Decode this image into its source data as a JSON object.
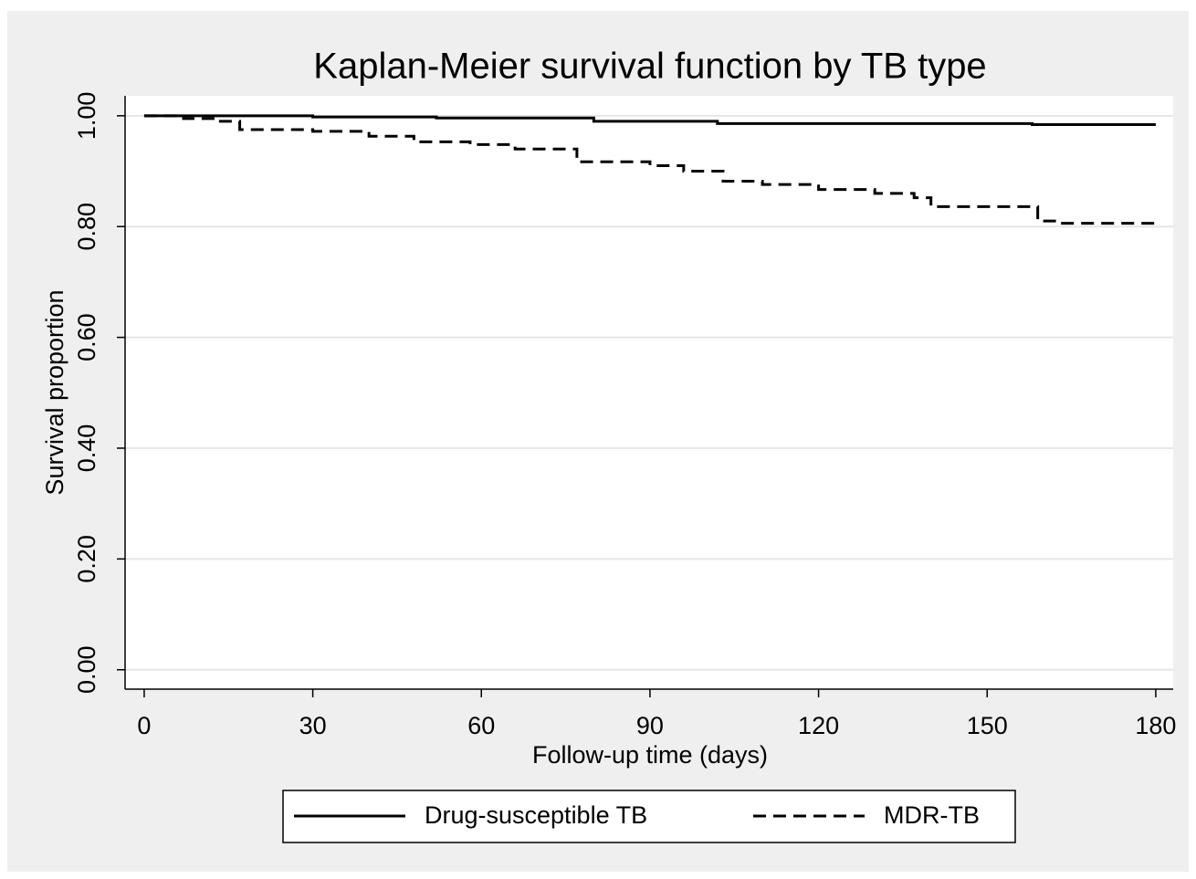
{
  "chart_data": {
    "type": "step",
    "title": "Kaplan-Meier survival function by TB type",
    "x_label": "Follow-up time (days)",
    "y_label": "Survival proportion",
    "xlim": [
      -3.4,
      183.1
    ],
    "ylim": [
      -0.035,
      1.036
    ],
    "xticks": [
      0,
      30,
      60,
      90,
      120,
      150,
      180
    ],
    "yticks": [
      {
        "value": 0,
        "label": "0.00"
      },
      {
        "value": 0.2,
        "label": "0.20"
      },
      {
        "value": 0.4,
        "label": "0.40"
      },
      {
        "value": 0.6,
        "label": "0.60"
      },
      {
        "value": 0.8,
        "label": "0.80"
      },
      {
        "value": 1,
        "label": "1.00"
      }
    ],
    "grid": true,
    "legend": "bottom",
    "series": [
      {
        "name": "Drug-susceptible TB",
        "color": "#000000",
        "dash": "solid",
        "x": [
          0,
          30,
          52,
          80,
          102,
          158,
          180
        ],
        "values": [
          1,
          0.998,
          0.996,
          0.99,
          0.986,
          0.984,
          0.984
        ]
      },
      {
        "name": "MDR-TB",
        "color": "#000000",
        "dash": "dashed",
        "x": [
          0,
          7,
          13,
          17,
          30,
          40,
          48,
          58,
          66,
          77,
          90,
          96,
          103,
          110,
          120,
          130,
          137,
          140,
          159,
          163,
          180
        ],
        "values": [
          1,
          0.995,
          0.99,
          0.975,
          0.972,
          0.963,
          0.953,
          0.948,
          0.94,
          0.917,
          0.91,
          0.9,
          0.882,
          0.876,
          0.867,
          0.86,
          0.852,
          0.836,
          0.81,
          0.806,
          0.806
        ]
      }
    ]
  }
}
